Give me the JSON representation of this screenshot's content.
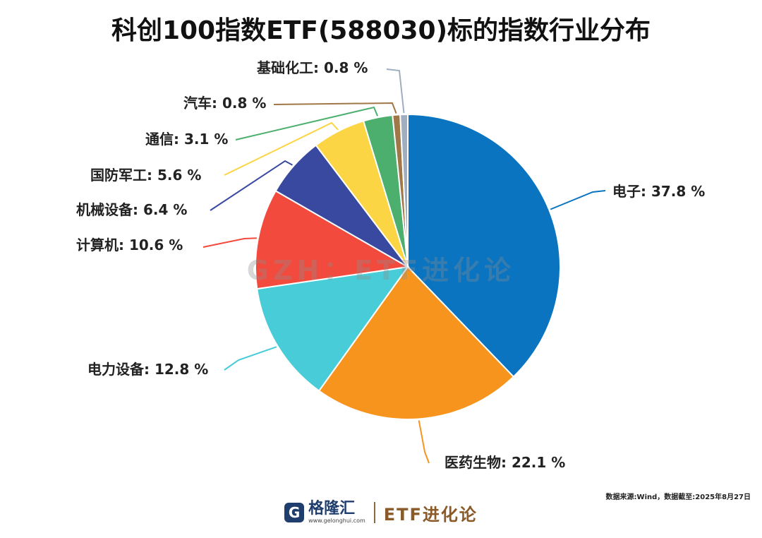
{
  "chart_data": {
    "type": "pie",
    "title": "科创100指数ETF(588030)标的指数行业分布",
    "unit": "%",
    "slices": [
      {
        "name": "电子",
        "value": 37.8,
        "label": "电子: 37.8 %",
        "color": "#0a74c0"
      },
      {
        "name": "医药生物",
        "value": 22.1,
        "label": "医药生物: 22.1 %",
        "color": "#f7941d"
      },
      {
        "name": "电力设备",
        "value": 12.8,
        "label": "电力设备: 12.8 %",
        "color": "#47ccd8"
      },
      {
        "name": "计算机",
        "value": 10.6,
        "label": "计算机: 10.6 %",
        "color": "#f34a3e"
      },
      {
        "name": "机械设备",
        "value": 6.4,
        "label": "机械设备: 6.4 %",
        "color": "#3949a0"
      },
      {
        "name": "国防军工",
        "value": 5.6,
        "label": "国防军工: 5.6 %",
        "color": "#fbd543"
      },
      {
        "name": "通信",
        "value": 3.1,
        "label": "通信: 3.1 %",
        "color": "#4caf6e"
      },
      {
        "name": "汽车",
        "value": 0.8,
        "label": "汽车: 0.8 %",
        "color": "#a07848"
      },
      {
        "name": "基础化工",
        "value": 0.8,
        "label": "基础化工: 0.8 %",
        "color": "#a0aec0"
      }
    ]
  },
  "watermark": "GZH：ETF进化论",
  "source_note": "数据来源:Wind，数据截至:2025年8月27日",
  "footer": {
    "logo_mark": "G",
    "logo_name": "格隆汇",
    "logo_domain": "www.gelonghui.com",
    "brand": "ETF进化论"
  }
}
